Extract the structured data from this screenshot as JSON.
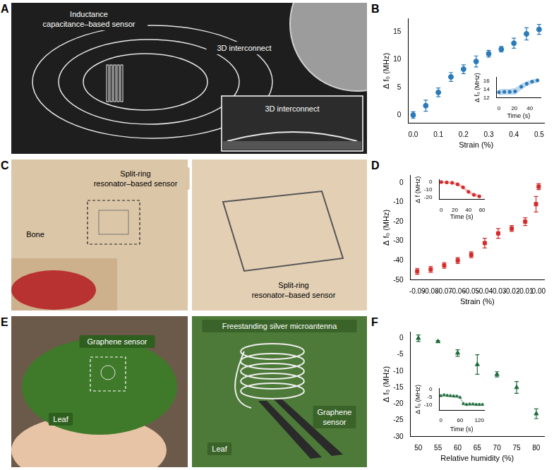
{
  "photos": [
    {
      "panel": "A",
      "labels": [
        "Inductance capacitance–based sensor",
        "3D interconnect",
        "3D interconnect"
      ]
    },
    {
      "panel": "C",
      "labels": [
        "Bone",
        "Split-ring resonator–based sensor",
        "Split-ring resonator–based sensor"
      ]
    },
    {
      "panel": "E",
      "labels": [
        "Graphene sensor",
        "Leaf",
        "Freestanding silver microantenna",
        "Graphene sensor",
        "Leaf"
      ]
    }
  ],
  "chart_data": [
    {
      "panel": "B",
      "type": "scatter",
      "x_label": "Strain (%)",
      "y_label": "Δ f₀ (MHz)",
      "x": [
        0,
        0.05,
        0.1,
        0.15,
        0.2,
        0.25,
        0.3,
        0.35,
        0.4,
        0.45,
        0.5
      ],
      "values": [
        0,
        1.7,
        4.1,
        6.9,
        8.3,
        9.7,
        11.1,
        11.9,
        13.0,
        14.7,
        15.5
      ],
      "errors": [
        0.6,
        1.0,
        0.8,
        0.8,
        0.8,
        1.0,
        0.6,
        0.5,
        0.9,
        1.1,
        0.9
      ],
      "color": "#2b7bba",
      "marker": "circle",
      "xlim": [
        -0.02,
        0.52
      ],
      "xticks": [
        {
          "value": 0,
          "label": "0.0"
        },
        0.1,
        0.2,
        0.3,
        0.4,
        0.5
      ],
      "ylim": [
        -1.5,
        17.5
      ],
      "yticks": [
        0,
        5,
        10,
        15
      ],
      "grid": false,
      "inset": {
        "type": "scatter",
        "x_label": "Time (s)",
        "y_label": "Δ f₀ (MHz)",
        "x": [
          0,
          7,
          14,
          21,
          29,
          36,
          43,
          50
        ],
        "values": [
          13.3,
          13.4,
          13.4,
          13.5,
          14.6,
          15.3,
          15.8,
          16.1
        ],
        "band": [
          0.7,
          0.7,
          0.7,
          0.8,
          0.7,
          0.6,
          0.5,
          0.5
        ],
        "color": "#2b7bba",
        "marker": "circle",
        "xlim": [
          -3,
          54
        ],
        "xticks": [
          0,
          20,
          40
        ],
        "ylim": [
          12,
          16.8
        ],
        "yticks": [
          12,
          14,
          16
        ],
        "grid": false
      }
    },
    {
      "panel": "D",
      "type": "scatter",
      "x_label": "Strain (%)",
      "y_label": "Δ f₀ (MHz)",
      "x": [
        -0.09,
        -0.08,
        -0.07,
        -0.06,
        -0.05,
        -0.04,
        -0.03,
        -0.02,
        -0.01,
        -0.002,
        0
      ],
      "values": [
        -45.5,
        -44.5,
        -42.5,
        -40,
        -37,
        -31,
        -26,
        -23.5,
        -20,
        -11,
        -2
      ],
      "errors": [
        1.5,
        1.5,
        1.5,
        1.5,
        1.5,
        2.5,
        2.5,
        1.5,
        2,
        4,
        1.5
      ],
      "color": "#d42a2a",
      "marker": "square",
      "xlim": [
        -0.095,
        0.004
      ],
      "xticks": [
        -0.09,
        -0.08,
        -0.07,
        -0.06,
        -0.05,
        -0.04,
        -0.03,
        -0.02,
        -0.01,
        {
          "value": 0,
          "label": "0.00"
        }
      ],
      "ylim": [
        -50,
        4
      ],
      "yticks": [
        -50,
        -40,
        -30,
        -20,
        -10,
        0
      ],
      "grid": false,
      "inset": {
        "type": "scatter",
        "x_label": "Time (s)",
        "y_label": "Δ f (MHz)",
        "x": [
          0,
          8,
          16,
          24,
          32,
          40,
          48,
          56
        ],
        "values": [
          0,
          -0.5,
          -1,
          -3,
          -7,
          -13,
          -17,
          -19
        ],
        "band": [
          1.5,
          1.5,
          1.5,
          2,
          2,
          2,
          2,
          2
        ],
        "color": "#d42a2a",
        "marker": "circle",
        "xlim": [
          -3,
          63
        ],
        "xticks": [
          0,
          20,
          40,
          60
        ],
        "ylim": [
          -23,
          3
        ],
        "yticks": [
          -20,
          -10,
          0
        ],
        "grid": false
      }
    },
    {
      "panel": "F",
      "type": "scatter",
      "x_label": "Relative humidity (%)",
      "y_label": "Δ f₀ (MHz)",
      "x": [
        50,
        55,
        60,
        65,
        70,
        75,
        80
      ],
      "values": [
        0,
        -1,
        -4.5,
        -8,
        -11,
        -15,
        -23
      ],
      "errors": [
        1,
        0.3,
        1,
        3,
        0.8,
        1.8,
        1.5
      ],
      "color": "#1f6b3c",
      "marker": "triangle",
      "xlim": [
        48,
        82
      ],
      "xticks": [
        50,
        55,
        60,
        65,
        70,
        75,
        80
      ],
      "ylim": [
        -30,
        2
      ],
      "yticks": [
        -30,
        -25,
        -20,
        -15,
        -10,
        -5,
        0
      ],
      "grid": false,
      "inset": {
        "type": "scatter",
        "x_label": "Time (s)",
        "y_label": "Δ f₀ (MHz)",
        "x": [
          0,
          10,
          20,
          30,
          40,
          50,
          60,
          70,
          80,
          90,
          100,
          110,
          120,
          130
        ],
        "values": [
          -4,
          -3.5,
          -3.8,
          -4,
          -4.2,
          -4.3,
          -5,
          -9,
          -9.5,
          -9.3,
          -9.3,
          -9.5,
          -9.5,
          -9.5
        ],
        "band": [
          1,
          1,
          1,
          1,
          1,
          1,
          1,
          1,
          1,
          1,
          1,
          1,
          1,
          1
        ],
        "color": "#1f6b3c",
        "marker": "triangle",
        "xlim": [
          -5,
          135
        ],
        "xticks": [
          0,
          60,
          120
        ],
        "ylim": [
          -13,
          0.5
        ],
        "yticks": [
          -10,
          -5,
          0
        ],
        "grid": false
      }
    }
  ]
}
